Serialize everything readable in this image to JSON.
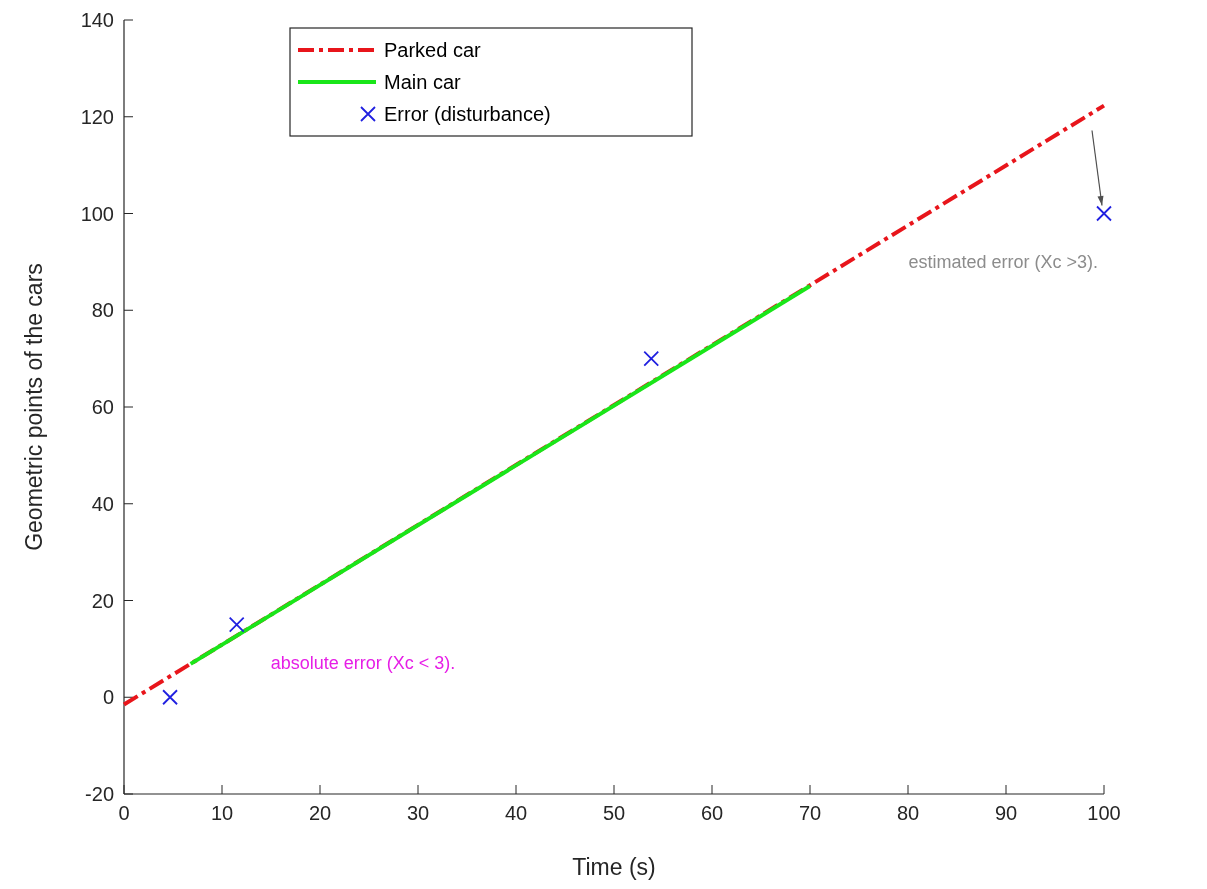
{
  "chart_data": {
    "type": "line",
    "xlabel": "Time (s)",
    "ylabel": "Geometric points of the cars",
    "xlim": [
      0,
      100
    ],
    "xticks": [
      0,
      10,
      20,
      30,
      40,
      50,
      60,
      70,
      80,
      90,
      100
    ],
    "ylim": [
      -20,
      140
    ],
    "yticks": [
      -20,
      0,
      20,
      40,
      60,
      80,
      100,
      120,
      140
    ],
    "grid": false,
    "legend": "top left",
    "series": [
      {
        "name": "Parked car",
        "color": "#e8151b",
        "line_style": "dashed",
        "x": [
          0,
          100
        ],
        "values": [
          -1.5,
          122.3
        ]
      },
      {
        "name": "Main car",
        "color": "#19e619",
        "line_style": "solid",
        "x": [
          6.8,
          70
        ],
        "values": [
          6.9,
          85
        ]
      },
      {
        "name": "Error (disturbance)",
        "type": "scatter",
        "color": "#2020e0",
        "marker": "cross",
        "x": [
          4.7,
          11.5,
          53.8,
          100
        ],
        "values": [
          0,
          15,
          70,
          100
        ]
      }
    ],
    "annotations": [
      {
        "text": "absolute error (Xc < 3).",
        "x": 11.5,
        "y": 15
      },
      {
        "text": "estimated error (Xc >3).",
        "x": 100,
        "y": 100
      }
    ]
  }
}
